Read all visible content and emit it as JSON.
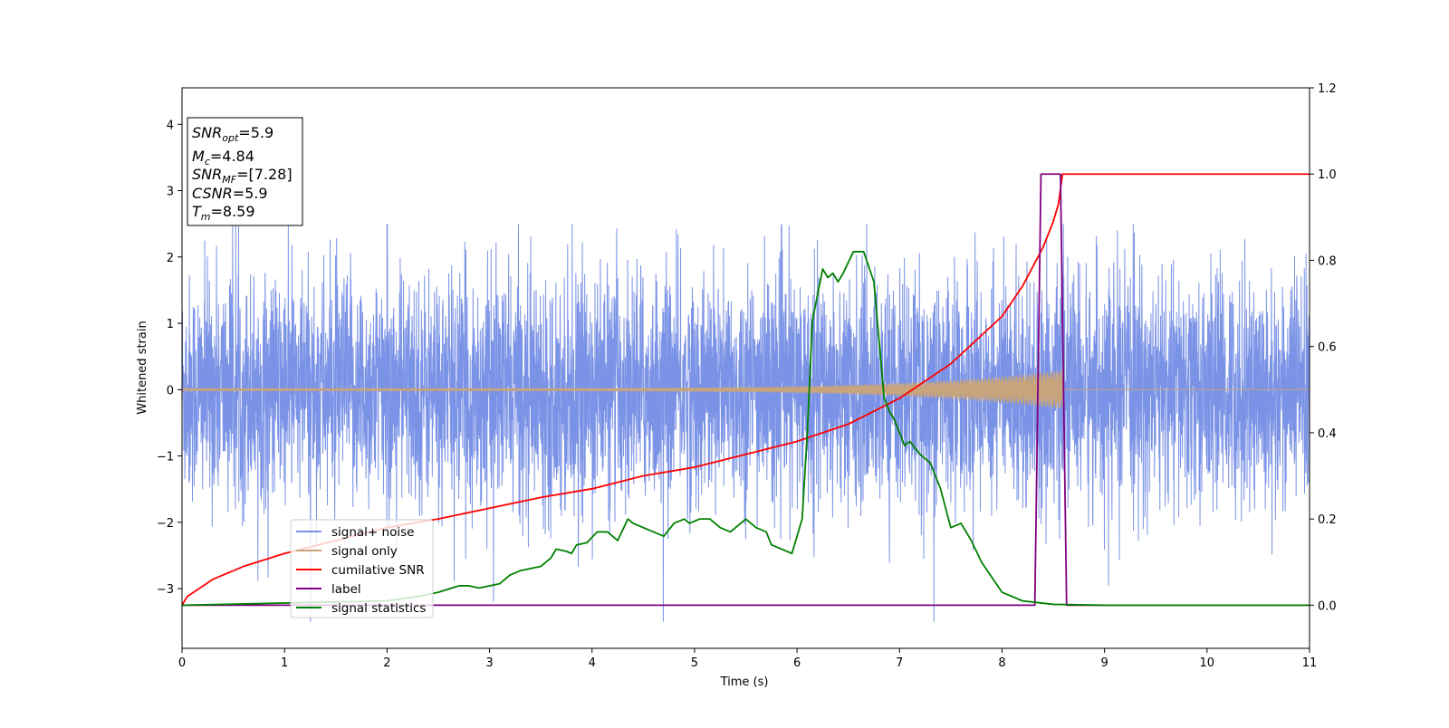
{
  "chart_data": {
    "type": "line",
    "xlabel": "Time (s)",
    "ylabel": "Whitened strain",
    "xlim": [
      0,
      11
    ],
    "ylim": [
      -3.9,
      4.55
    ],
    "y2lim": [
      -0.1,
      1.2
    ],
    "x_ticks": [
      0,
      1,
      2,
      3,
      4,
      5,
      6,
      7,
      8,
      9,
      10,
      11
    ],
    "y_ticks": [
      -3,
      -2,
      -1,
      0,
      1,
      2,
      3,
      4
    ],
    "y2_ticks": [
      0.0,
      0.2,
      0.4,
      0.6,
      0.8,
      1.0,
      1.2
    ],
    "grid": false,
    "legend_position": "lower-left",
    "info_box": {
      "snr_opt": {
        "symbol": "SNR",
        "sub": "opt",
        "value": "=5.9"
      },
      "mc": {
        "symbol": "M",
        "sub": "c",
        "value": "=4.84"
      },
      "snr_mf": {
        "symbol": "SNR",
        "sub": "MF",
        "value": "=[7.28]"
      },
      "csnr": {
        "symbol": "CSNR",
        "value": "=5.9"
      },
      "tm": {
        "symbol": "T",
        "sub": "m",
        "value": "=8.59"
      }
    },
    "series": [
      {
        "name": "signal+ noise",
        "color": "#7b93e6",
        "axis": "left",
        "kind": "noise",
        "amplitude_range": [
          -3.5,
          2.5
        ],
        "x_range": [
          0,
          11
        ]
      },
      {
        "name": "signal only",
        "color": "#c8a47c",
        "axis": "left",
        "kind": "chirp",
        "x_range": [
          0,
          8.59
        ],
        "amplitude_start": 0.02,
        "amplitude_end": 0.3
      },
      {
        "name": "cumilative SNR",
        "color": "#ff0000",
        "axis": "right",
        "x": [
          0,
          0.05,
          0.3,
          0.6,
          1,
          1.5,
          2,
          2.5,
          3,
          3.5,
          4,
          4.5,
          5,
          5.5,
          6,
          6.5,
          7,
          7.5,
          8,
          8.2,
          8.4,
          8.5,
          8.55,
          8.59,
          9,
          10,
          11
        ],
        "y": [
          0.0,
          0.02,
          0.06,
          0.09,
          0.12,
          0.15,
          0.18,
          0.2,
          0.225,
          0.25,
          0.27,
          0.3,
          0.32,
          0.35,
          0.38,
          0.42,
          0.48,
          0.56,
          0.67,
          0.74,
          0.83,
          0.89,
          0.93,
          1.0,
          1.0,
          1.0,
          1.0
        ]
      },
      {
        "name": "label",
        "color": "#800080",
        "axis": "right",
        "x": [
          0,
          8.32,
          8.38,
          8.57,
          8.63,
          11
        ],
        "y": [
          0,
          0,
          1,
          1,
          0,
          0
        ]
      },
      {
        "name": "signal statistics",
        "color": "#008000",
        "axis": "right",
        "x": [
          0,
          2.0,
          2.3,
          2.5,
          2.7,
          2.8,
          2.9,
          3.0,
          3.1,
          3.2,
          3.3,
          3.4,
          3.5,
          3.6,
          3.65,
          3.75,
          3.8,
          3.85,
          3.95,
          4.05,
          4.15,
          4.25,
          4.35,
          4.4,
          4.5,
          4.6,
          4.7,
          4.8,
          4.9,
          4.95,
          5.05,
          5.15,
          5.25,
          5.35,
          5.45,
          5.5,
          5.6,
          5.7,
          5.75,
          5.85,
          5.95,
          6.05,
          6.1,
          6.15,
          6.25,
          6.3,
          6.35,
          6.4,
          6.45,
          6.55,
          6.65,
          6.75,
          6.85,
          6.9,
          6.95,
          7.05,
          7.1,
          7.2,
          7.3,
          7.4,
          7.5,
          7.6,
          7.7,
          7.8,
          8.0,
          8.2,
          8.5,
          9,
          10,
          11
        ],
        "y": [
          0.0,
          0.01,
          0.02,
          0.03,
          0.045,
          0.045,
          0.04,
          0.045,
          0.05,
          0.07,
          0.08,
          0.085,
          0.09,
          0.11,
          0.13,
          0.125,
          0.12,
          0.14,
          0.145,
          0.17,
          0.17,
          0.15,
          0.2,
          0.19,
          0.18,
          0.17,
          0.16,
          0.19,
          0.2,
          0.19,
          0.2,
          0.2,
          0.18,
          0.17,
          0.19,
          0.2,
          0.18,
          0.17,
          0.14,
          0.13,
          0.12,
          0.2,
          0.4,
          0.66,
          0.78,
          0.76,
          0.77,
          0.75,
          0.77,
          0.82,
          0.82,
          0.75,
          0.48,
          0.45,
          0.43,
          0.37,
          0.38,
          0.35,
          0.33,
          0.27,
          0.18,
          0.19,
          0.15,
          0.1,
          0.03,
          0.01,
          0.002,
          0.0,
          0.0,
          0.0
        ]
      }
    ]
  }
}
